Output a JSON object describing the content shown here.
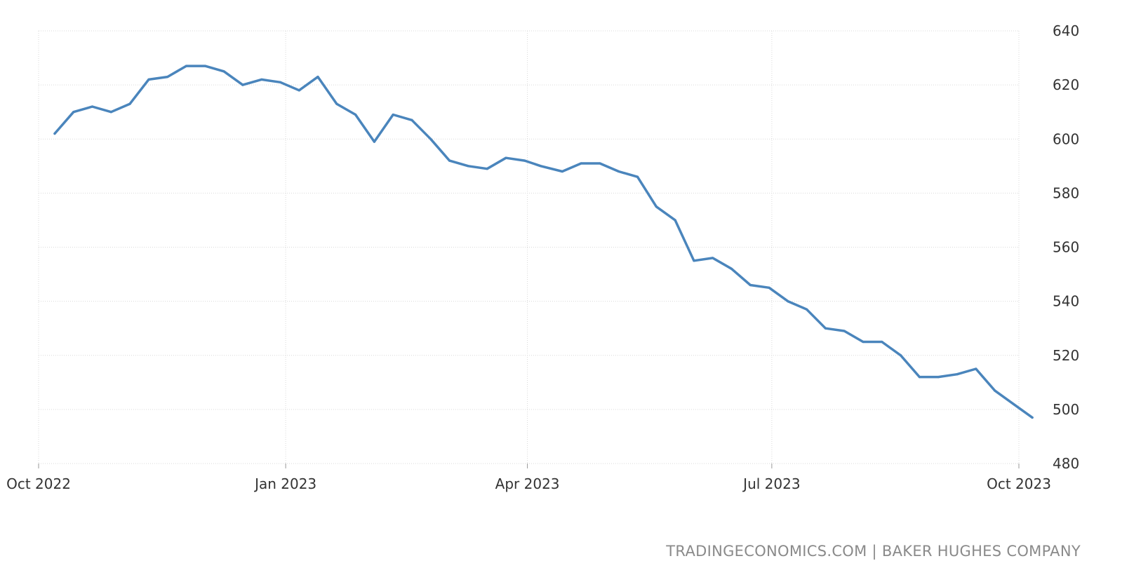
{
  "colors": {
    "line": "#4a85bc",
    "grid": "#d9d9d9",
    "text": "#333333",
    "credit": "#8a8a8a"
  },
  "source": {
    "credit": "TRADINGECONOMICS.COM | BAKER HUGHES COMPANY"
  },
  "chart_data": {
    "type": "line",
    "title": "",
    "xlabel": "",
    "ylabel": "",
    "x_ticks": [
      {
        "label": "Oct 2022",
        "date": "2022-10-01"
      },
      {
        "label": "Jan 2023",
        "date": "2023-01-01"
      },
      {
        "label": "Apr 2023",
        "date": "2023-04-01"
      },
      {
        "label": "Jul 2023",
        "date": "2023-07-01"
      },
      {
        "label": "Oct 2023",
        "date": "2023-10-01"
      }
    ],
    "xlim": [
      "2022-10-01",
      "2023-10-01"
    ],
    "ylim": [
      480,
      640
    ],
    "y_ticks": [
      480,
      500,
      520,
      540,
      560,
      580,
      600,
      620,
      640
    ],
    "y_axis_position": "right",
    "grid": true,
    "series": [
      {
        "x": [
          "2022-10-07",
          "2022-10-14",
          "2022-10-21",
          "2022-10-28",
          "2022-11-04",
          "2022-11-11",
          "2022-11-18",
          "2022-11-25",
          "2022-12-02",
          "2022-12-09",
          "2022-12-16",
          "2022-12-23",
          "2022-12-30",
          "2023-01-06",
          "2023-01-13",
          "2023-01-20",
          "2023-01-27",
          "2023-02-03",
          "2023-02-10",
          "2023-02-17",
          "2023-02-24",
          "2023-03-03",
          "2023-03-10",
          "2023-03-17",
          "2023-03-24",
          "2023-03-31",
          "2023-04-06",
          "2023-04-14",
          "2023-04-21",
          "2023-04-28",
          "2023-05-05",
          "2023-05-12",
          "2023-05-19",
          "2023-05-26",
          "2023-06-02",
          "2023-06-09",
          "2023-06-16",
          "2023-06-23",
          "2023-06-30",
          "2023-07-07",
          "2023-07-14",
          "2023-07-21",
          "2023-07-28",
          "2023-08-04",
          "2023-08-11",
          "2023-08-18",
          "2023-08-25",
          "2023-09-01",
          "2023-09-08",
          "2023-09-15",
          "2023-09-22",
          "2023-09-29",
          "2023-10-06"
        ],
        "values": [
          602,
          610,
          612,
          610,
          613,
          622,
          623,
          627,
          627,
          625,
          620,
          622,
          621,
          618,
          623,
          613,
          609,
          599,
          609,
          607,
          600,
          592,
          590,
          589,
          593,
          592,
          590,
          588,
          591,
          591,
          588,
          586,
          575,
          570,
          555,
          556,
          552,
          546,
          545,
          540,
          537,
          530,
          529,
          525,
          525,
          520,
          512,
          512,
          513,
          515,
          507,
          502,
          497
        ]
      }
    ]
  }
}
